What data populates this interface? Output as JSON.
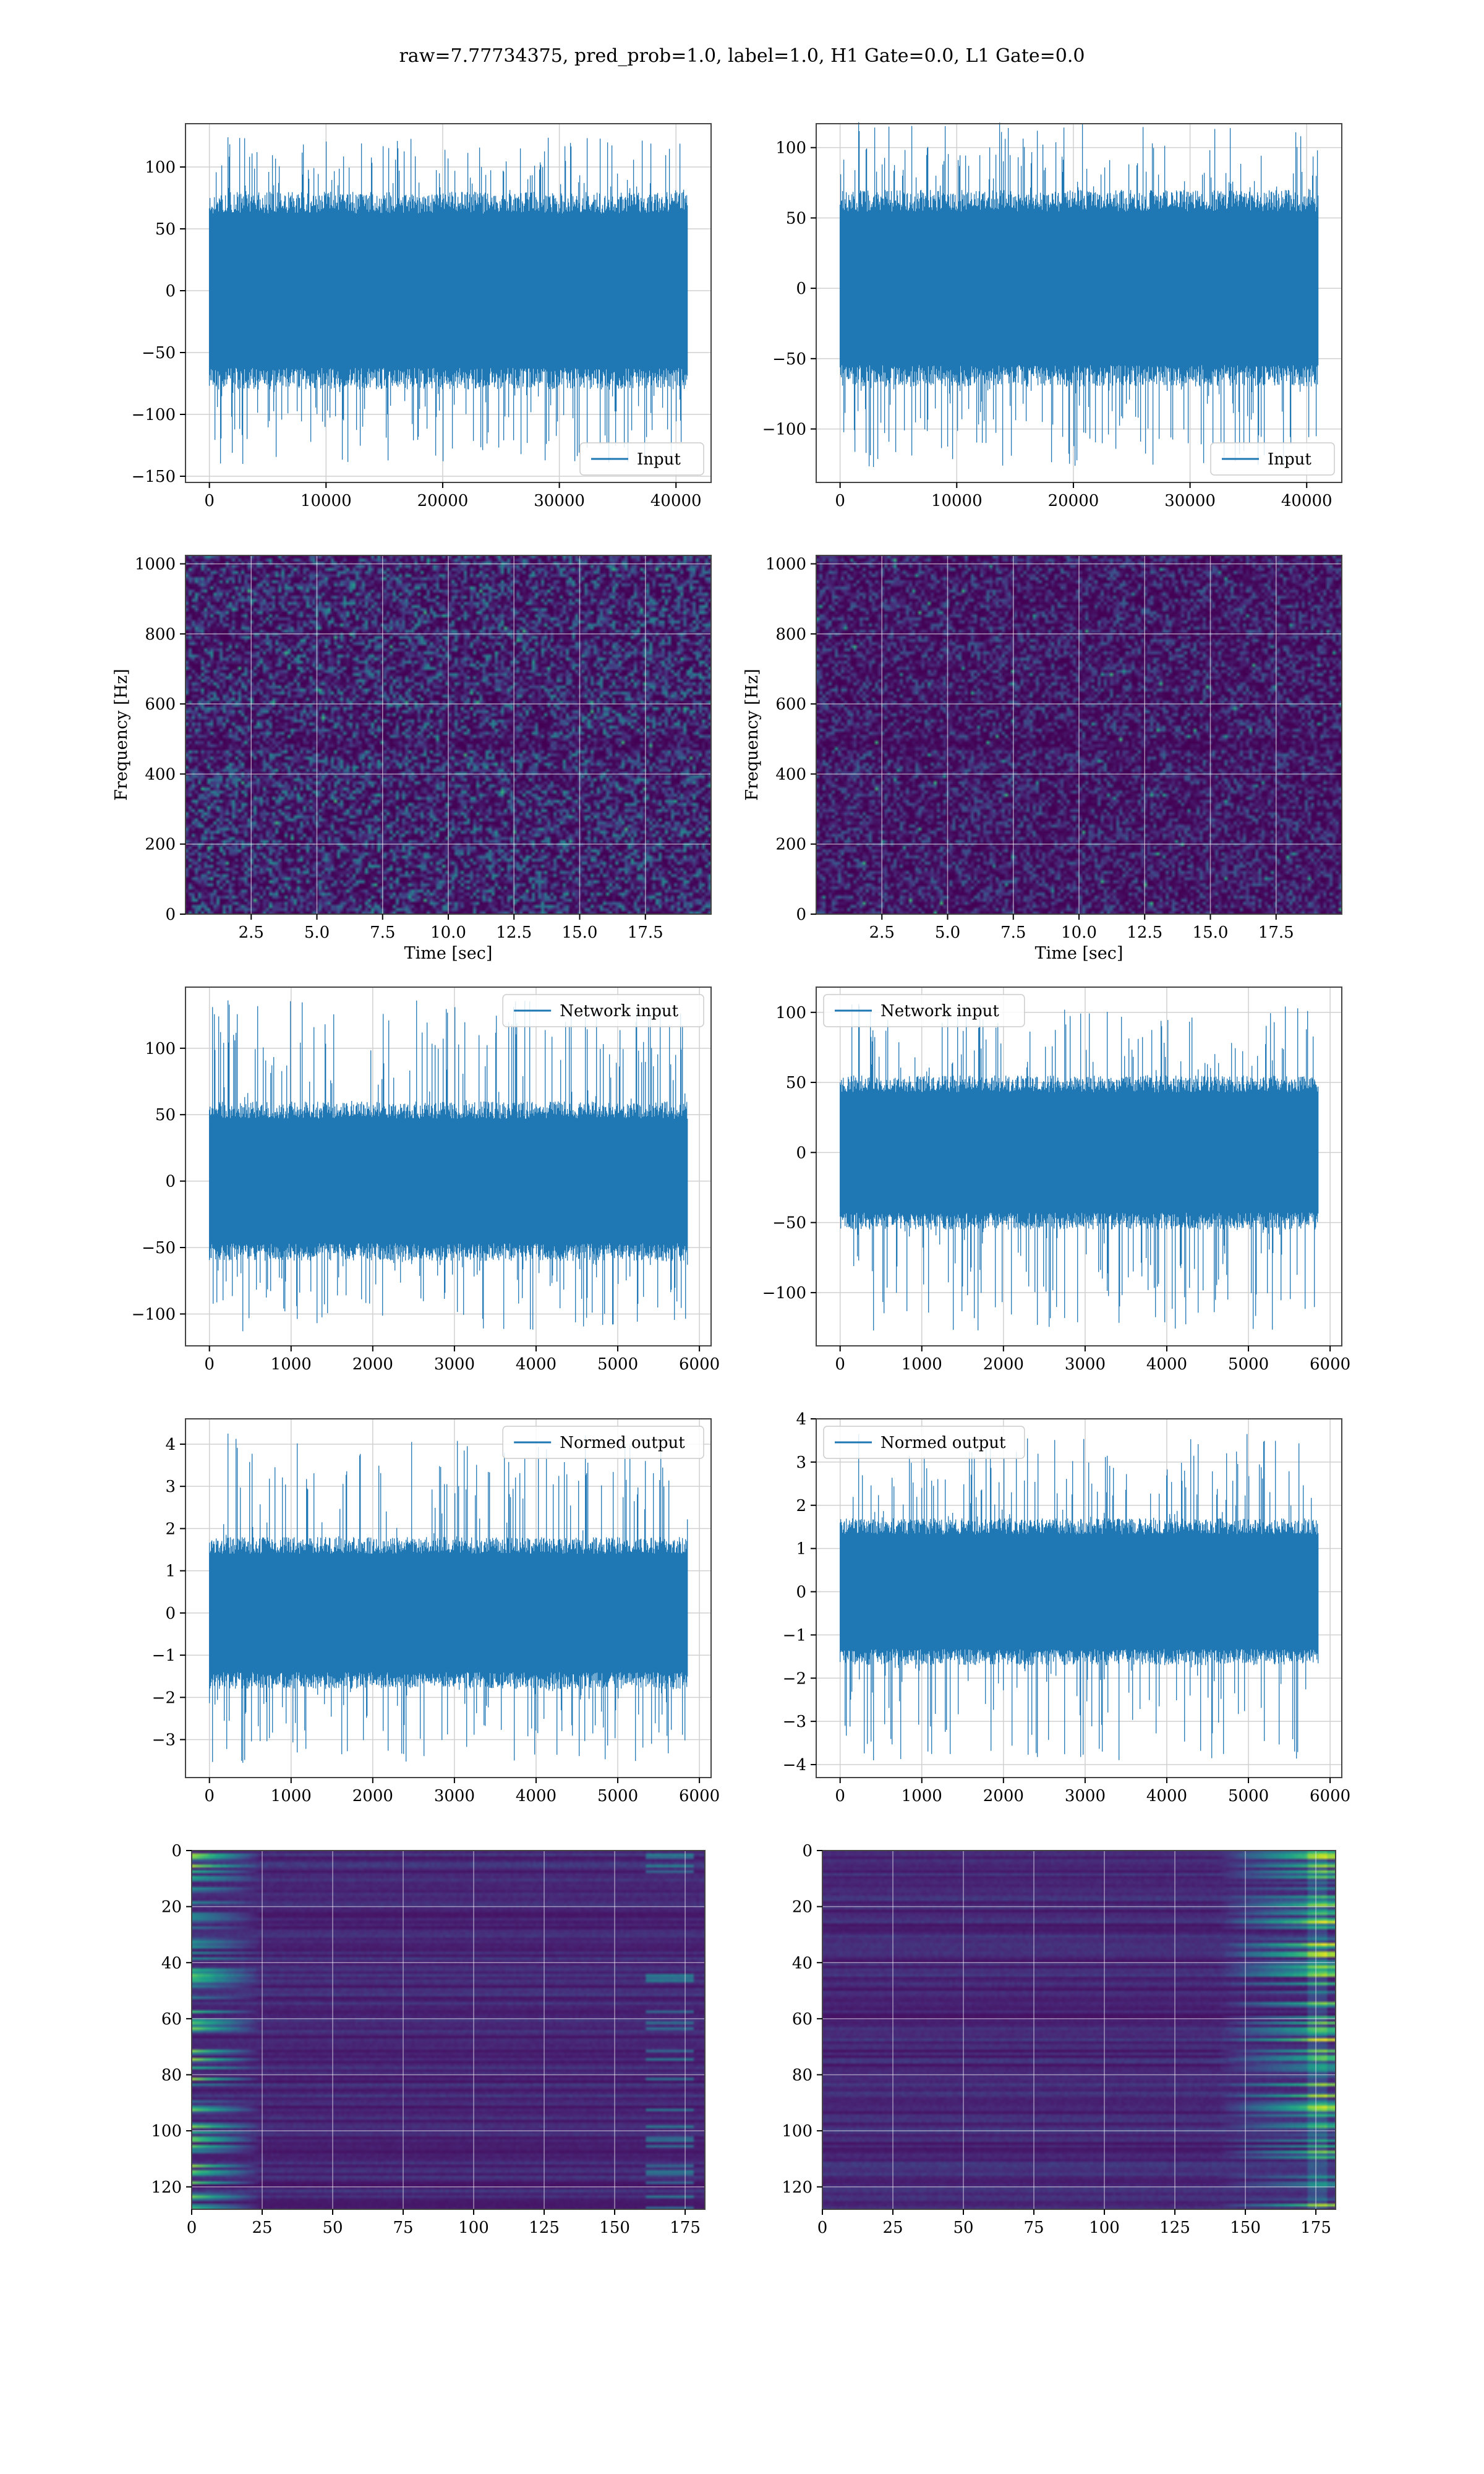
{
  "figure": {
    "title": "raw=7.77734375, pred_prob=1.0, label=1.0, H1 Gate=0.0, L1 Gate=0.0",
    "colors": {
      "line": "#1f77b4",
      "grid": "#d0d0d0",
      "frame": "#444444"
    }
  },
  "chart_data": [
    {
      "id": "input-left",
      "type": "line",
      "legend": "Input",
      "legend_position": "lower-right",
      "x_range": [
        0,
        40960
      ],
      "xlim": [
        -2048,
        43008
      ],
      "ylim": [
        -155,
        135
      ],
      "x_ticks": [
        0,
        10000,
        20000,
        30000,
        40000
      ],
      "x_tick_labels": [
        "0",
        "10000",
        "20000",
        "30000",
        "40000"
      ],
      "y_ticks": [
        -150,
        -100,
        -50,
        0,
        50,
        100
      ],
      "y_tick_labels": [
        "−150",
        "−100",
        "−50",
        "0",
        "50",
        "100"
      ],
      "amplitude": {
        "typical": 80,
        "peak_max": 124,
        "peak_min": -140
      },
      "grid": true,
      "xlabel": "",
      "ylabel": ""
    },
    {
      "id": "input-right",
      "type": "line",
      "legend": "Input",
      "legend_position": "lower-right",
      "x_range": [
        0,
        40960
      ],
      "xlim": [
        -2048,
        43008
      ],
      "ylim": [
        -138,
        117
      ],
      "x_ticks": [
        0,
        10000,
        20000,
        30000,
        40000
      ],
      "x_tick_labels": [
        "0",
        "10000",
        "20000",
        "30000",
        "40000"
      ],
      "y_ticks": [
        -100,
        -50,
        0,
        50,
        100
      ],
      "y_tick_labels": [
        "−100",
        "−50",
        "0",
        "50",
        "100"
      ],
      "amplitude": {
        "typical": 70,
        "peak_max": 118,
        "peak_min": -127
      },
      "grid": true,
      "xlabel": "",
      "ylabel": ""
    },
    {
      "id": "spectrogram-left",
      "type": "heatmap",
      "colormap": "viridis",
      "xlim": [
        0,
        20
      ],
      "ylim": [
        0,
        1024
      ],
      "x_ticks": [
        2.5,
        5.0,
        7.5,
        10.0,
        12.5,
        15.0,
        17.5
      ],
      "x_tick_labels": [
        "2.5",
        "5.0",
        "7.5",
        "10.0",
        "12.5",
        "15.0",
        "17.5"
      ],
      "y_ticks": [
        0,
        200,
        400,
        600,
        800,
        1000
      ],
      "y_tick_labels": [
        "0",
        "200",
        "400",
        "600",
        "800",
        "1000"
      ],
      "xlabel": "Time [sec]",
      "ylabel": "Frequency [Hz]",
      "grid": true
    },
    {
      "id": "spectrogram-right",
      "type": "heatmap",
      "colormap": "viridis",
      "xlim": [
        0,
        20
      ],
      "ylim": [
        0,
        1024
      ],
      "x_ticks": [
        2.5,
        5.0,
        7.5,
        10.0,
        12.5,
        15.0,
        17.5
      ],
      "x_tick_labels": [
        "2.5",
        "5.0",
        "7.5",
        "10.0",
        "12.5",
        "15.0",
        "17.5"
      ],
      "y_ticks": [
        0,
        200,
        400,
        600,
        800,
        1000
      ],
      "y_tick_labels": [
        "0",
        "200",
        "400",
        "600",
        "800",
        "1000"
      ],
      "xlabel": "Time [sec]",
      "ylabel": "Frequency [Hz]",
      "grid": true
    },
    {
      "id": "network-input-left",
      "type": "line",
      "legend": "Network input",
      "legend_position": "upper-right",
      "x_range": [
        0,
        5850
      ],
      "xlim": [
        -293,
        6143
      ],
      "ylim": [
        -124,
        146
      ],
      "x_ticks": [
        0,
        1000,
        2000,
        3000,
        4000,
        5000,
        6000
      ],
      "x_tick_labels": [
        "0",
        "1000",
        "2000",
        "3000",
        "4000",
        "5000",
        "6000"
      ],
      "y_ticks": [
        -100,
        -50,
        0,
        50,
        100
      ],
      "y_tick_labels": [
        "−100",
        "−50",
        "0",
        "50",
        "100"
      ],
      "amplitude": {
        "typical": 60,
        "peak_max": 136,
        "peak_min": -113
      },
      "grid": true,
      "xlabel": "",
      "ylabel": ""
    },
    {
      "id": "network-input-right",
      "type": "line",
      "legend": "Network input",
      "legend_position": "upper-left",
      "x_range": [
        0,
        5850
      ],
      "xlim": [
        -293,
        6143
      ],
      "ylim": [
        -138,
        118
      ],
      "x_ticks": [
        0,
        1000,
        2000,
        3000,
        4000,
        5000,
        6000
      ],
      "x_tick_labels": [
        "0",
        "1000",
        "2000",
        "3000",
        "4000",
        "5000",
        "6000"
      ],
      "y_ticks": [
        -100,
        -50,
        0,
        50,
        100
      ],
      "y_tick_labels": [
        "−100",
        "−50",
        "0",
        "50",
        "100"
      ],
      "amplitude": {
        "typical": 55,
        "peak_max": 106,
        "peak_min": -127
      },
      "grid": true,
      "xlabel": "",
      "ylabel": ""
    },
    {
      "id": "normed-output-left",
      "type": "line",
      "legend": "Normed output",
      "legend_position": "upper-right",
      "x_range": [
        0,
        5850
      ],
      "xlim": [
        -293,
        6143
      ],
      "ylim": [
        -3.9,
        4.6
      ],
      "x_ticks": [
        0,
        1000,
        2000,
        3000,
        4000,
        5000,
        6000
      ],
      "x_tick_labels": [
        "0",
        "1000",
        "2000",
        "3000",
        "4000",
        "5000",
        "6000"
      ],
      "y_ticks": [
        -3,
        -2,
        -1,
        0,
        1,
        2,
        3,
        4
      ],
      "y_tick_labels": [
        "−3",
        "−2",
        "−1",
        "0",
        "1",
        "2",
        "3",
        "4"
      ],
      "amplitude": {
        "typical": 1.8,
        "peak_max": 4.25,
        "peak_min": -3.55
      },
      "grid": true,
      "xlabel": "",
      "ylabel": ""
    },
    {
      "id": "normed-output-right",
      "type": "line",
      "legend": "Normed output",
      "legend_position": "upper-left",
      "x_range": [
        0,
        5850
      ],
      "xlim": [
        -293,
        6143
      ],
      "ylim": [
        -4.3,
        4.0
      ],
      "x_ticks": [
        0,
        1000,
        2000,
        3000,
        4000,
        5000,
        6000
      ],
      "x_tick_labels": [
        "0",
        "1000",
        "2000",
        "3000",
        "4000",
        "5000",
        "6000"
      ],
      "y_ticks": [
        -4,
        -3,
        -2,
        -1,
        0,
        1,
        2,
        3,
        4
      ],
      "y_tick_labels": [
        "−4",
        "−3",
        "−2",
        "−1",
        "0",
        "1",
        "2",
        "3",
        "4"
      ],
      "amplitude": {
        "typical": 1.7,
        "peak_max": 3.65,
        "peak_min": -3.9
      },
      "grid": true,
      "xlabel": "",
      "ylabel": ""
    },
    {
      "id": "feature-map-left",
      "type": "heatmap",
      "colormap": "viridis",
      "xlim": [
        0,
        182
      ],
      "ylim": [
        128,
        0
      ],
      "hot_side": "left",
      "x_ticks": [
        0,
        25,
        50,
        75,
        100,
        125,
        150,
        175
      ],
      "x_tick_labels": [
        "0",
        "25",
        "50",
        "75",
        "100",
        "125",
        "150",
        "175"
      ],
      "y_ticks": [
        0,
        20,
        40,
        60,
        80,
        100,
        120
      ],
      "y_tick_labels": [
        "0",
        "20",
        "40",
        "60",
        "80",
        "100",
        "120"
      ],
      "grid": true,
      "xlabel": "",
      "ylabel": ""
    },
    {
      "id": "feature-map-right",
      "type": "heatmap",
      "colormap": "viridis",
      "xlim": [
        0,
        182
      ],
      "ylim": [
        128,
        0
      ],
      "hot_side": "right",
      "x_ticks": [
        0,
        25,
        50,
        75,
        100,
        125,
        150,
        175
      ],
      "x_tick_labels": [
        "0",
        "25",
        "50",
        "75",
        "100",
        "125",
        "150",
        "175"
      ],
      "y_ticks": [
        0,
        20,
        40,
        60,
        80,
        100,
        120
      ],
      "y_tick_labels": [
        "0",
        "20",
        "40",
        "60",
        "80",
        "100",
        "120"
      ],
      "grid": true,
      "xlabel": "",
      "ylabel": ""
    }
  ]
}
